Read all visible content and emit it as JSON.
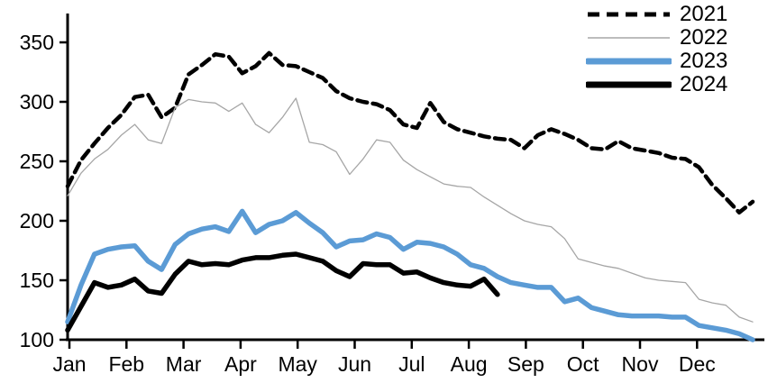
{
  "chart_data": {
    "type": "line",
    "title": "",
    "xlabel": "",
    "ylabel": "",
    "grid": false,
    "legend_position": "top-right",
    "background": "#ffffff",
    "axis_color": "#000000",
    "ylim": [
      100,
      375
    ],
    "yticks": [
      100,
      150,
      200,
      250,
      300,
      350
    ],
    "y_tick_labels": [
      "100",
      "150",
      "200",
      "250",
      "300",
      "350"
    ],
    "x_tick_labels": [
      "Jan",
      "Feb",
      "Mar",
      "Apr",
      "May",
      "Jun",
      "Jul",
      "Aug",
      "Sep",
      "Oct",
      "Nov",
      "Dec"
    ],
    "x_unit": "week-of-year (52 points per full series)",
    "series": [
      {
        "name": "2021",
        "color": "#000000",
        "line_style": "dashed",
        "line_width": 4.5,
        "values": [
          229,
          251,
          265,
          278,
          289,
          304,
          306,
          287,
          295,
          323,
          331,
          340,
          338,
          324,
          330,
          341,
          331,
          330,
          325,
          320,
          309,
          303,
          300,
          298,
          293,
          281,
          278,
          299,
          283,
          277,
          274,
          271,
          269,
          268,
          261,
          272,
          277,
          273,
          268,
          261,
          260,
          267,
          261,
          259,
          257,
          253,
          252,
          245,
          230,
          219,
          207,
          216
        ]
      },
      {
        "name": "2022",
        "color": "#a6a6a6",
        "line_style": "solid",
        "line_width": 1.3,
        "values": [
          221,
          240,
          252,
          260,
          272,
          281,
          268,
          265,
          295,
          302,
          300,
          299,
          292,
          299,
          281,
          274,
          287,
          303,
          266,
          264,
          258,
          239,
          252,
          268,
          266,
          251,
          243,
          237,
          231,
          229,
          228,
          220,
          213,
          206,
          200,
          197,
          195,
          185,
          168,
          165,
          162,
          160,
          156,
          152,
          150,
          149,
          148,
          134,
          131,
          129,
          119,
          115
        ]
      },
      {
        "name": "2023",
        "color": "#5b9bd5",
        "line_style": "solid",
        "line_width": 5.5,
        "values": [
          115,
          146,
          172,
          176,
          178,
          179,
          166,
          159,
          180,
          189,
          193,
          195,
          191,
          208,
          190,
          197,
          200,
          207,
          198,
          190,
          178,
          183,
          184,
          189,
          186,
          176,
          182,
          181,
          178,
          172,
          163,
          160,
          153,
          148,
          146,
          144,
          144,
          132,
          135,
          127,
          124,
          121,
          120,
          120,
          120,
          119,
          119,
          112,
          110,
          108,
          105,
          100
        ]
      },
      {
        "name": "2024",
        "color": "#000000",
        "line_style": "solid",
        "line_width": 5.5,
        "values": [
          108,
          128,
          148,
          144,
          146,
          151,
          141,
          139,
          155,
          166,
          163,
          164,
          163,
          167,
          169,
          169,
          171,
          172,
          169,
          166,
          158,
          153,
          164,
          163,
          163,
          156,
          157,
          152,
          148,
          146,
          145,
          151,
          138
        ]
      }
    ]
  }
}
